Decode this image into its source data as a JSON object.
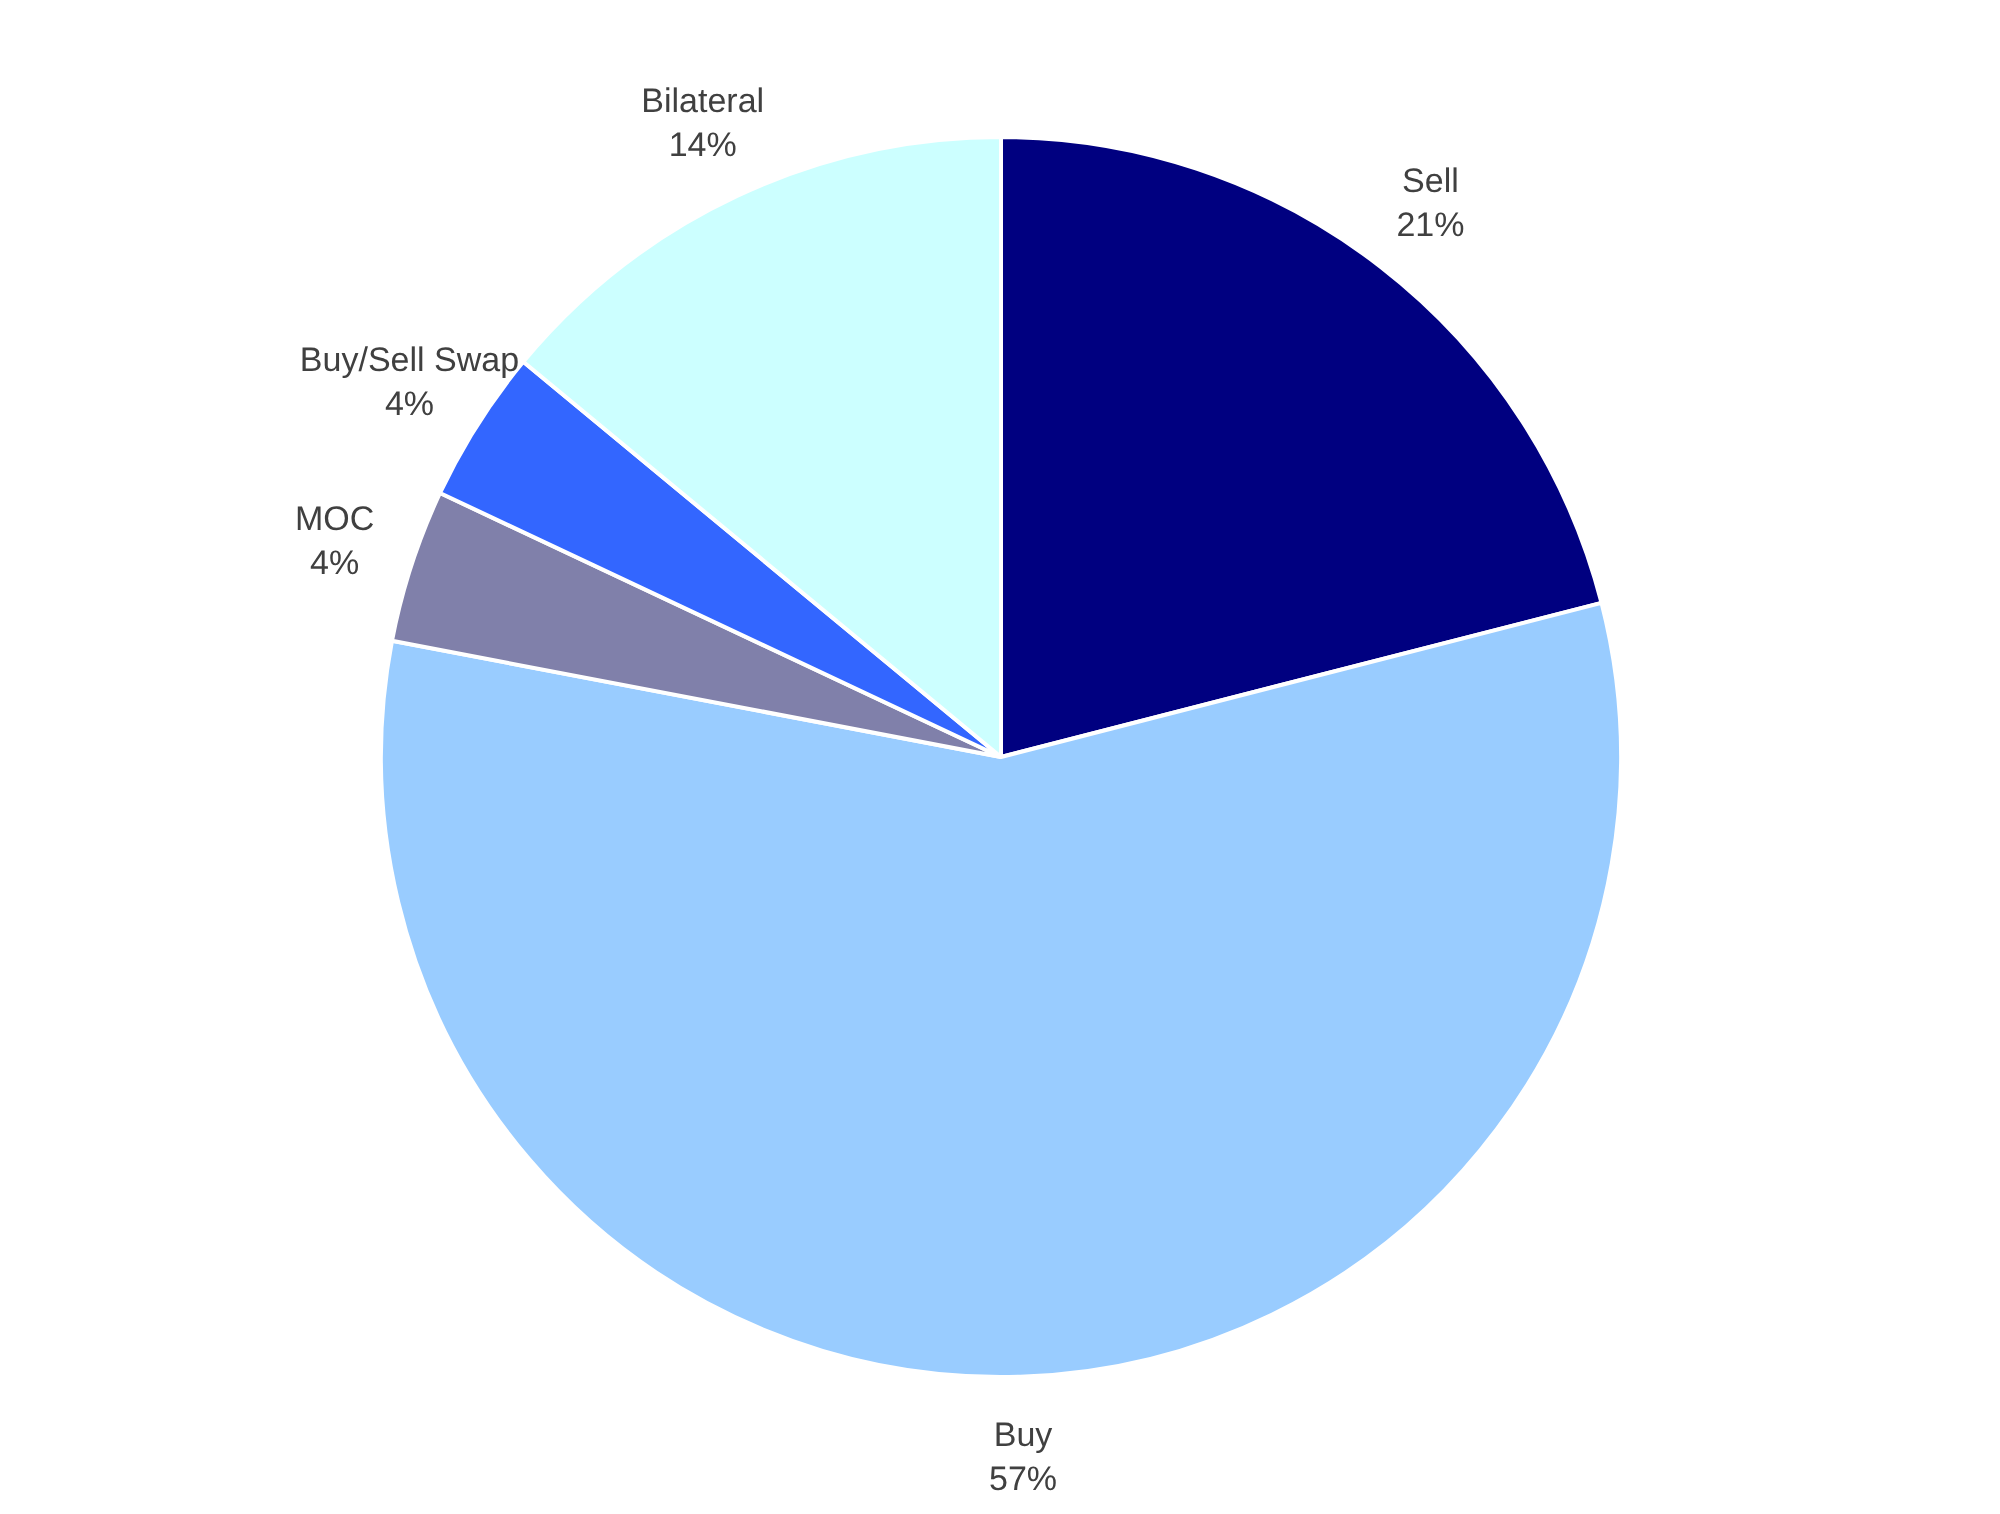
{
  "chart_data": {
    "type": "pie",
    "categories": [
      "Sell",
      "Buy",
      "MOC",
      "Buy/Sell Swap",
      "Bilateral"
    ],
    "values": [
      21,
      57,
      4,
      4,
      14
    ],
    "value_labels": [
      "21%",
      "57%",
      "4%",
      "4%",
      "14%"
    ],
    "colors": [
      "#000080",
      "#99ccff",
      "#8080aa",
      "#3366ff",
      "#ccffff"
    ]
  }
}
